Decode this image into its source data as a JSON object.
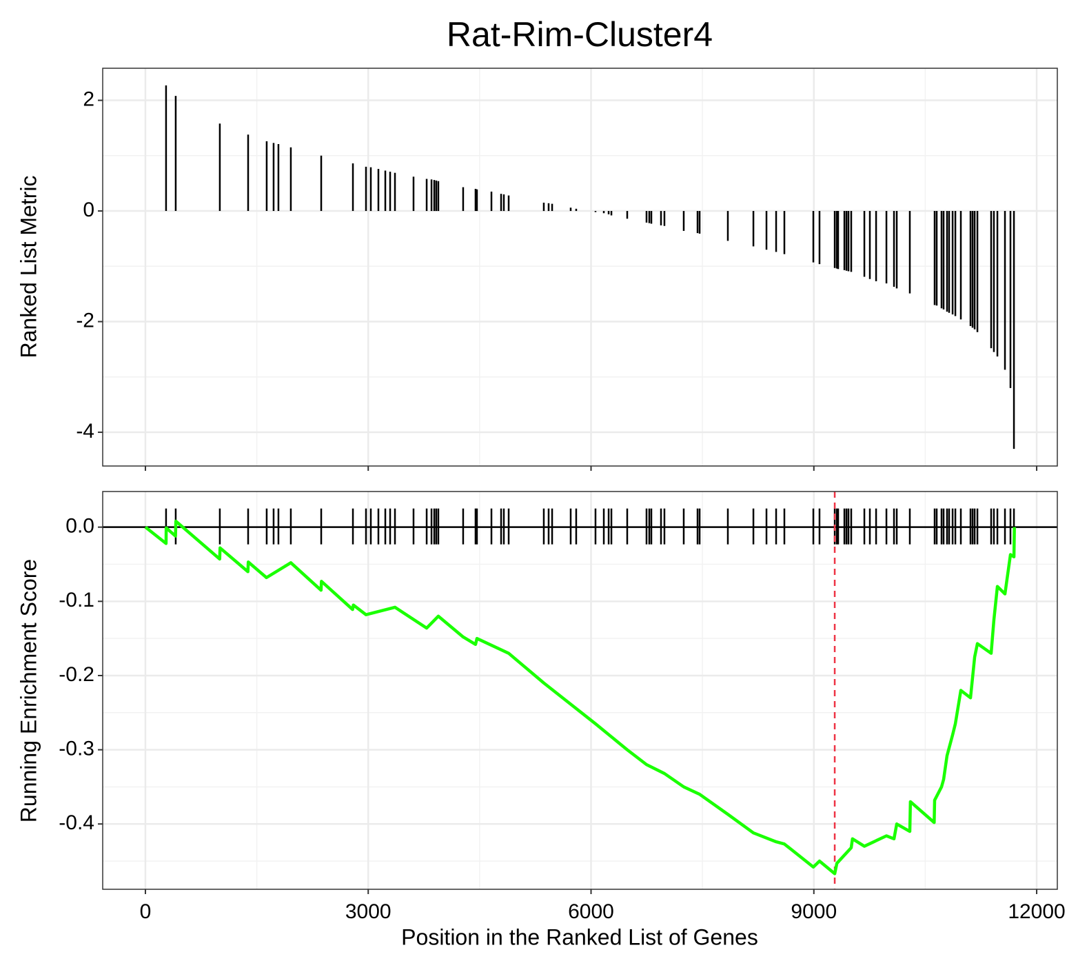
{
  "chart_data": [
    {
      "type": "bar",
      "title": "Rat-Rim-Cluster4",
      "ylabel": "Ranked List Metric",
      "color": "#000000",
      "grid": true,
      "x": [
        278,
        408,
        1002,
        1383,
        1633,
        1726,
        1791,
        1958,
        2367,
        2794,
        2970,
        3035,
        3137,
        3230,
        3295,
        3360,
        3610,
        3787,
        3852,
        3889,
        3916,
        3944,
        4278,
        4445,
        4464,
        4659,
        4789,
        4826,
        4891,
        5364,
        5429,
        5476,
        5726,
        5800,
        6060,
        6172,
        6237,
        6274,
        6487,
        6747,
        6784,
        6812,
        6942,
        6988,
        7248,
        7434,
        7462,
        7842,
        8186,
        8362,
        8492,
        8603,
        8993,
        9076,
        9281,
        9309,
        9327,
        9411,
        9439,
        9466,
        9503,
        9680,
        9754,
        9838,
        9977,
        10079,
        10116,
        10292,
        10626,
        10654,
        10719,
        10747,
        10793,
        10821,
        10868,
        10905,
        10979,
        11109,
        11137,
        11165,
        11202,
        11387,
        11424,
        11471,
        11573,
        11647,
        11694
      ],
      "values": [
        2.27,
        2.08,
        1.58,
        1.38,
        1.26,
        1.23,
        1.21,
        1.15,
        1.0,
        0.86,
        0.8,
        0.79,
        0.76,
        0.73,
        0.71,
        0.69,
        0.62,
        0.58,
        0.57,
        0.56,
        0.55,
        0.54,
        0.43,
        0.4,
        0.39,
        0.35,
        0.31,
        0.3,
        0.28,
        0.15,
        0.14,
        0.13,
        0.06,
        0.04,
        -0.02,
        -0.04,
        -0.06,
        -0.08,
        -0.14,
        -0.21,
        -0.22,
        -0.23,
        -0.26,
        -0.27,
        -0.36,
        -0.4,
        -0.41,
        -0.54,
        -0.64,
        -0.7,
        -0.74,
        -0.78,
        -0.93,
        -0.96,
        -1.03,
        -1.04,
        -1.05,
        -1.07,
        -1.08,
        -1.09,
        -1.1,
        -1.19,
        -1.23,
        -1.27,
        -1.31,
        -1.37,
        -1.4,
        -1.49,
        -1.7,
        -1.71,
        -1.76,
        -1.78,
        -1.82,
        -1.84,
        -1.87,
        -1.9,
        -1.96,
        -2.08,
        -2.11,
        -2.14,
        -2.19,
        -2.48,
        -2.55,
        -2.63,
        -2.87,
        -3.2,
        -4.3
      ],
      "xlim": [
        -575,
        12278
      ],
      "ylim": [
        -4.61,
        2.58
      ],
      "xticks": [
        0,
        3000,
        6000,
        9000,
        12000
      ],
      "yticks": [
        -4,
        -2,
        0,
        2
      ]
    },
    {
      "type": "line",
      "xlabel": "Position in the Ranked List of Genes",
      "ylabel": "Running Enrichment Score",
      "color": "#1aff00",
      "grid": true,
      "x": [
        0,
        278,
        280,
        405,
        410,
        1000,
        1005,
        1380,
        1385,
        1630,
        1958,
        2365,
        2370,
        2790,
        2800,
        2970,
        3360,
        3787,
        3944,
        4278,
        4445,
        4464,
        4891,
        5364,
        6060,
        6487,
        6747,
        6988,
        7248,
        7462,
        7842,
        8186,
        8492,
        8603,
        8993,
        9076,
        9281,
        9310,
        9503,
        9520,
        9680,
        9977,
        10079,
        10116,
        10292,
        10300,
        10620,
        10626,
        10719,
        10747,
        10793,
        10868,
        10905,
        10979,
        11109,
        11165,
        11202,
        11387,
        11424,
        11471,
        11573,
        11647,
        11694,
        11700
      ],
      "values": [
        0,
        -0.022,
        -0.001,
        -0.012,
        0.008,
        -0.043,
        -0.028,
        -0.06,
        -0.047,
        -0.068,
        -0.048,
        -0.085,
        -0.073,
        -0.111,
        -0.105,
        -0.118,
        -0.108,
        -0.136,
        -0.12,
        -0.148,
        -0.158,
        -0.15,
        -0.17,
        -0.21,
        -0.265,
        -0.3,
        -0.32,
        -0.332,
        -0.35,
        -0.36,
        -0.387,
        -0.412,
        -0.424,
        -0.427,
        -0.458,
        -0.45,
        -0.467,
        -0.453,
        -0.432,
        -0.42,
        -0.43,
        -0.416,
        -0.42,
        -0.4,
        -0.41,
        -0.37,
        -0.398,
        -0.368,
        -0.35,
        -0.34,
        -0.308,
        -0.28,
        -0.265,
        -0.22,
        -0.23,
        -0.175,
        -0.157,
        -0.17,
        -0.125,
        -0.08,
        -0.09,
        -0.037,
        -0.04,
        0
      ],
      "peak_x": 9281,
      "peak_color": "#ee3344",
      "xlim": [
        -575,
        12278
      ],
      "ylim": [
        -0.488,
        0.048
      ],
      "xticks": [
        0,
        3000,
        6000,
        9000,
        12000
      ],
      "yticks": [
        {
          "value": 0,
          "label": "0.0"
        },
        -0.1,
        -0.2,
        -0.3,
        -0.4
      ]
    }
  ]
}
